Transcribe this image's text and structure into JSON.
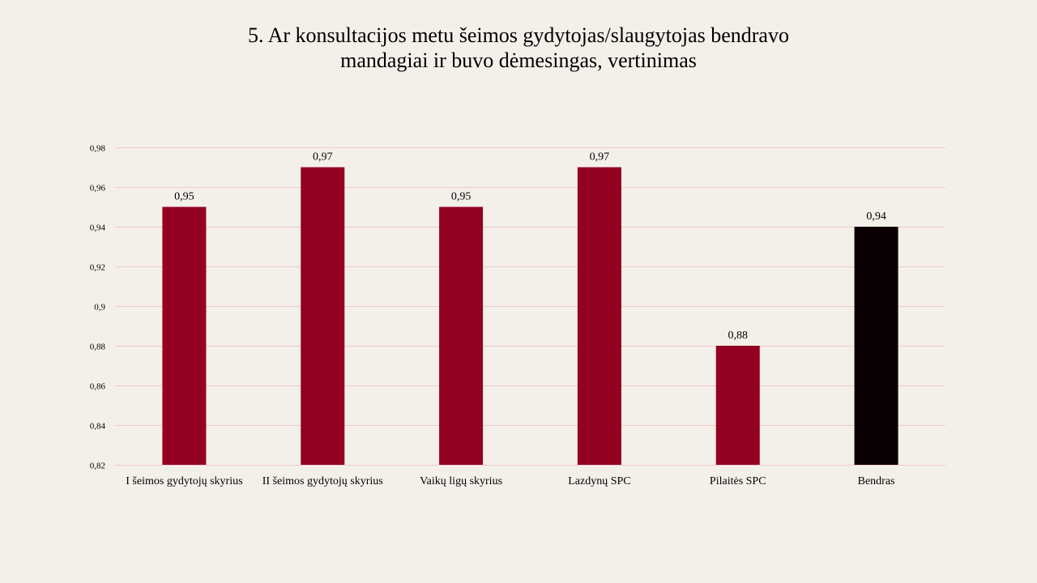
{
  "title": {
    "line1": "5. Ar konsultacijos  metu šeimos gydytojas/slaugytojas  bendravo",
    "line2": "mandagiai  ir buvo dėmesingas,  vertinimas"
  },
  "colors": {
    "background": "#f3f0ea",
    "bar": "#930020",
    "highlight_bar": "#0a0003",
    "grid": "#f0c8c8"
  },
  "chart_data": {
    "type": "bar",
    "title": "5. Ar konsultacijos  metu šeimos gydytojas/slaugytojas  bendravo mandagiai  ir buvo dėmesingas,  vertinimas",
    "xlabel": "",
    "ylabel": "",
    "categories": [
      "I šeimos gydytojų skyrius",
      "II šeimos gydytojų skyrius",
      "Vaikų ligų skyrius",
      "Lazdynų SPC",
      "Pilaitės SPC",
      "Bendras"
    ],
    "values": [
      0.95,
      0.97,
      0.95,
      0.97,
      0.88,
      0.94
    ],
    "value_labels": [
      "0,95",
      "0,97",
      "0,95",
      "0,97",
      "0,88",
      "0,94"
    ],
    "highlight_index": 5,
    "ylim": [
      0.82,
      0.98
    ],
    "yticks": [
      0.82,
      0.84,
      0.86,
      0.88,
      0.9,
      0.92,
      0.94,
      0.96,
      0.98
    ],
    "ytick_labels": [
      "0,82",
      "0,84",
      "0,86",
      "0,88",
      "0,9",
      "0,92",
      "0,94",
      "0,96",
      "0,98"
    ],
    "grid": true,
    "legend": "none"
  }
}
